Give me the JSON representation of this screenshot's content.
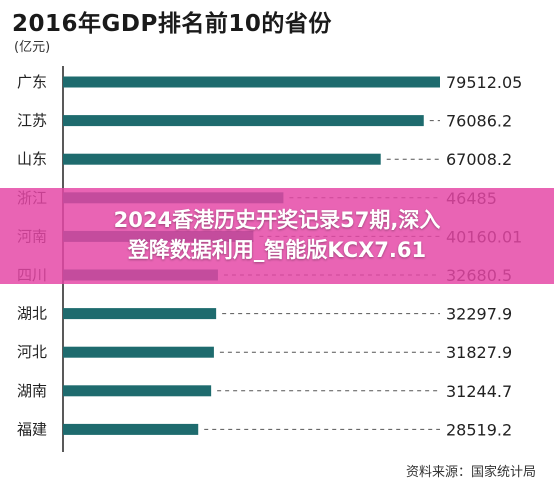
{
  "header": {
    "title": "2016年GDP排名前10的省份",
    "unit": "(亿元)"
  },
  "footer": {
    "source": "资料来源：国家统计局"
  },
  "overlay": {
    "line1": "2024香港历史开奖记录57期,深入",
    "line2": "登降数据利用_智能版KCX7.61",
    "color": "#e546a6"
  },
  "colors": {
    "bar": "#1e6b6e",
    "leader": "#555555"
  },
  "chart_data": {
    "type": "bar",
    "orientation": "horizontal",
    "title": "2016年GDP排名前10的省份",
    "unit": "(亿元)",
    "categories": [
      "广东",
      "江苏",
      "山东",
      "浙江",
      "河南",
      "四川",
      "湖北",
      "河北",
      "湖南",
      "福建"
    ],
    "values": [
      79512.05,
      76086.2,
      67008.2,
      46485,
      40160.01,
      32680.5,
      32297.9,
      31827.9,
      31244.7,
      28519.2
    ],
    "value_labels": [
      "79512.05",
      "76086.2",
      "67008.2",
      "46485",
      "40160.01",
      "32680.5",
      "32297.9",
      "31827.9",
      "31244.7",
      "28519.2"
    ],
    "xlim": [
      0,
      79512.05
    ],
    "grid": false,
    "legend": "none"
  }
}
